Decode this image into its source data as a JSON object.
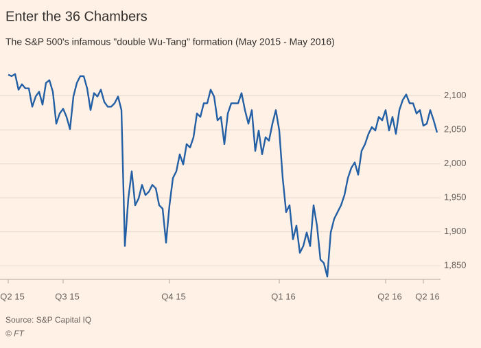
{
  "chart_data": {
    "type": "line",
    "title": "Enter the 36 Chambers",
    "subtitle": "The S&P 500's infamous \"double Wu-Tang\" formation (May 2015 - May 2016)",
    "source": "Source: S&P Capital IQ",
    "credit": "© FT",
    "color": "#235fa4",
    "grid": true,
    "values": [
      2131,
      2129,
      2132,
      2109,
      2117,
      2111,
      2111,
      2084,
      2099,
      2106,
      2087,
      2119,
      2123,
      2106,
      2059,
      2074,
      2081,
      2069,
      2051,
      2099,
      2119,
      2129,
      2129,
      2111,
      2079,
      2104,
      2099,
      2109,
      2091,
      2084,
      2084,
      2089,
      2099,
      2079,
      1879,
      1949,
      1989,
      1939,
      1949,
      1969,
      1954,
      1959,
      1969,
      1964,
      1939,
      1934,
      1884,
      1939,
      1979,
      1989,
      2014,
      1999,
      2029,
      2024,
      2039,
      2074,
      2069,
      2089,
      2089,
      2109,
      2099,
      2064,
      2069,
      2029,
      2074,
      2089,
      2089,
      2089,
      2104,
      2079,
      2059,
      2079,
      2019,
      2049,
      2014,
      2039,
      2034,
      2059,
      2079,
      2049,
      1979,
      1929,
      1939,
      1889,
      1909,
      1869,
      1879,
      1899,
      1879,
      1939,
      1909,
      1859,
      1854,
      1834,
      1899,
      1919,
      1929,
      1939,
      1954,
      1979,
      1994,
      2002,
      1984,
      2019,
      2029,
      2044,
      2054,
      2049,
      2069,
      2064,
      2079,
      2049,
      2069,
      2044,
      2079,
      2094,
      2102,
      2089,
      2089,
      2074,
      2079,
      2056,
      2059,
      2079,
      2064,
      2046
    ],
    "xlim": [
      0,
      125
    ],
    "xticks": [
      {
        "value": 0,
        "label": "Q2 15"
      },
      {
        "value": 16,
        "label": "Q3 15"
      },
      {
        "value": 47,
        "label": "Q4 15"
      },
      {
        "value": 79,
        "label": "Q1 16"
      },
      {
        "value": 110,
        "label": "Q2 16"
      },
      {
        "value": 121,
        "label": "Q2 16"
      }
    ],
    "ylim": [
      1830,
      2140
    ],
    "yticks": [
      {
        "value": 1850,
        "label": "1,850"
      },
      {
        "value": 1900,
        "label": "1,900"
      },
      {
        "value": 1950,
        "label": "1,950"
      },
      {
        "value": 2000,
        "label": "2,000"
      },
      {
        "value": 2050,
        "label": "2,050"
      },
      {
        "value": 2100,
        "label": "2,100"
      }
    ]
  }
}
